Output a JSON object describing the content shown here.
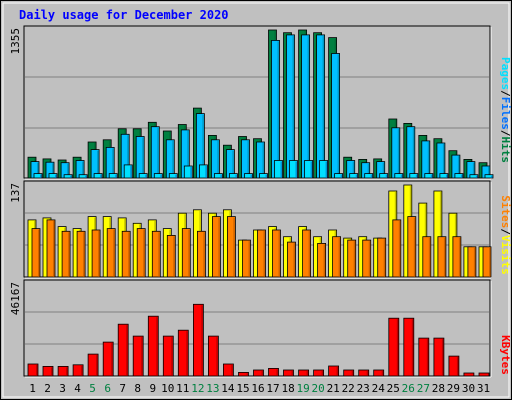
{
  "title": "Daily usage for December 2020",
  "colors": {
    "background": "#c0c0c0",
    "title": "#0000ff",
    "hits": "#008040",
    "files": "#00c0ff",
    "pages": "#00e0ff",
    "visits": "#ffff00",
    "sites": "#ff8000",
    "kbytes": "#ff0000",
    "weekend_label": "#008040",
    "weekday_label": "#000000"
  },
  "legend": {
    "pages": "Pages",
    "files": "Files",
    "hits": "Hits",
    "sites": "Sites",
    "visits": "Visits",
    "kbytes": "KBytes",
    "separator": "/"
  },
  "chart_data": {
    "type": "bar",
    "x": [
      "1",
      "2",
      "3",
      "4",
      "5",
      "6",
      "7",
      "8",
      "9",
      "10",
      "11",
      "12",
      "13",
      "14",
      "15",
      "16",
      "17",
      "18",
      "19",
      "20",
      "21",
      "22",
      "23",
      "24",
      "25",
      "26",
      "27",
      "28",
      "29",
      "30",
      "31"
    ],
    "weekend_days": [
      "5",
      "6",
      "12",
      "13",
      "19",
      "20",
      "26",
      "27"
    ],
    "panels": [
      {
        "name": "hits-files-pages",
        "ymax_label": "1355",
        "ymax": 1355,
        "series": [
          {
            "name": "Hits",
            "values": [
              190,
              175,
              165,
              190,
              330,
              350,
              450,
              450,
              510,
              430,
              490,
              640,
              390,
              300,
              380,
              360,
              1355,
              1330,
              1355,
              1330,
              1285,
              190,
              170,
              175,
              540,
              500,
              390,
              360,
              250,
              170,
              140
            ]
          },
          {
            "name": "Files",
            "values": [
              150,
              145,
              140,
              160,
              260,
              280,
              400,
              380,
              470,
              350,
              440,
              590,
              350,
              260,
              350,
              330,
              1260,
              1310,
              1310,
              1310,
              1140,
              160,
              140,
              150,
              460,
              470,
              340,
              320,
              210,
              150,
              110
            ]
          },
          {
            "name": "Pages",
            "values": [
              40,
              40,
              30,
              30,
              40,
              40,
              120,
              40,
              40,
              40,
              110,
              120,
              40,
              40,
              40,
              40,
              160,
              160,
              160,
              160,
              40,
              40,
              40,
              40,
              40,
              40,
              40,
              40,
              40,
              30,
              30
            ]
          }
        ]
      },
      {
        "name": "visits-sites",
        "ymax_label": "137",
        "ymax": 137,
        "series": [
          {
            "name": "Visits",
            "values": [
              85,
              88,
              75,
              72,
              90,
              90,
              88,
              80,
              85,
              72,
              95,
              100,
              95,
              100,
              55,
              70,
              75,
              60,
              75,
              60,
              70,
              58,
              60,
              58,
              128,
              137,
              110,
              128,
              95,
              45,
              45
            ]
          },
          {
            "name": "Sites",
            "values": [
              72,
              85,
              68,
              68,
              70,
              72,
              68,
              72,
              68,
              62,
              72,
              68,
              90,
              90,
              55,
              70,
              70,
              52,
              70,
              50,
              60,
              55,
              55,
              58,
              85,
              90,
              60,
              60,
              60,
              45,
              45
            ]
          }
        ]
      },
      {
        "name": "kbytes",
        "ymax_label": "46167",
        "ymax": 46167,
        "series": [
          {
            "name": "KBytes",
            "values": [
              6000,
              4800,
              4800,
              5600,
              11000,
              17000,
              26000,
              20000,
              30000,
              20000,
              23000,
              36000,
              20000,
              6000,
              1800,
              3000,
              3800,
              3000,
              3000,
              3000,
              5000,
              3000,
              3000,
              3000,
              29000,
              29000,
              19000,
              19000,
              10000,
              1500,
              1500
            ]
          }
        ]
      }
    ]
  }
}
